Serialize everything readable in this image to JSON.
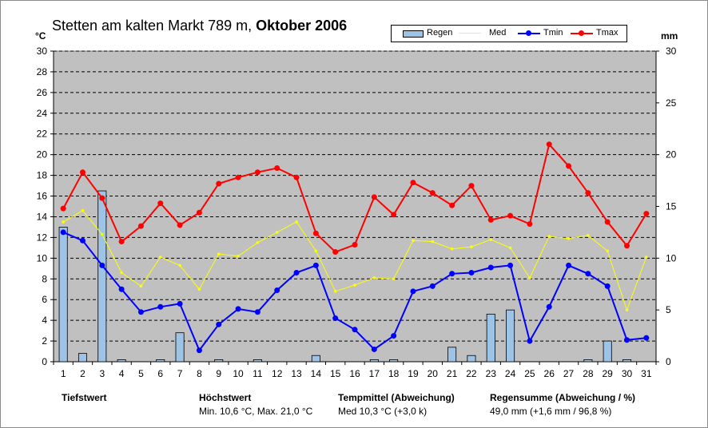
{
  "chart_data": {
    "type": "line",
    "title_prefix": "Stetten am kalten Markt 789 m,",
    "title_bold": "Oktober 2006",
    "left_unit": "°C",
    "right_unit": "mm",
    "x": [
      1,
      2,
      3,
      4,
      5,
      6,
      7,
      8,
      9,
      10,
      11,
      12,
      13,
      14,
      15,
      16,
      17,
      18,
      19,
      20,
      21,
      22,
      23,
      24,
      25,
      26,
      27,
      28,
      29,
      30,
      31
    ],
    "ylim_left": [
      0,
      30
    ],
    "yticks_left": [
      0,
      2,
      4,
      6,
      8,
      10,
      12,
      14,
      16,
      18,
      20,
      22,
      24,
      26,
      28,
      30
    ],
    "ylim_right": [
      0,
      30
    ],
    "yticks_right": [
      0,
      5,
      10,
      15,
      20,
      25,
      30
    ],
    "grid": true,
    "legend_position": "top-right",
    "series": [
      {
        "name": "Regen",
        "kind": "bar",
        "axis": "right",
        "color": "#9DC3E6",
        "values": [
          13.0,
          0.8,
          16.5,
          0.2,
          0,
          0.2,
          2.8,
          0,
          0.2,
          0,
          0.2,
          0,
          0,
          0.6,
          0,
          0,
          0.2,
          0.2,
          0,
          0,
          1.4,
          0.6,
          4.6,
          5.0,
          0,
          0,
          0,
          0.2,
          2.0,
          0.2,
          0
        ]
      },
      {
        "name": "Med",
        "kind": "line",
        "axis": "left",
        "color": "#FFFF00",
        "values": [
          13.5,
          14.6,
          12.3,
          8.6,
          7.3,
          10.1,
          9.3,
          7.0,
          10.4,
          10.2,
          11.5,
          12.5,
          13.5,
          10.7,
          6.8,
          7.4,
          8.1,
          8.0,
          11.7,
          11.6,
          10.9,
          11.1,
          11.8,
          11.0,
          8.1,
          12.1,
          11.9,
          12.2,
          10.7,
          5.0,
          10.1
        ]
      },
      {
        "name": "Tmin",
        "kind": "line",
        "axis": "left",
        "color": "#0000FF",
        "values": [
          12.5,
          11.7,
          9.3,
          7.0,
          4.8,
          5.3,
          5.6,
          1.1,
          3.6,
          5.1,
          4.8,
          6.9,
          8.6,
          9.3,
          4.2,
          3.1,
          1.2,
          2.5,
          6.8,
          7.3,
          8.5,
          8.6,
          9.1,
          9.3,
          2.0,
          5.3,
          9.3,
          8.5,
          7.3,
          2.1,
          2.3
        ]
      },
      {
        "name": "Tmax",
        "kind": "line",
        "axis": "left",
        "color": "#FF0000",
        "values": [
          14.8,
          18.3,
          15.8,
          11.6,
          13.1,
          15.3,
          13.2,
          14.4,
          17.2,
          17.8,
          18.3,
          18.7,
          17.8,
          12.4,
          10.6,
          11.3,
          15.9,
          14.2,
          17.3,
          16.3,
          15.1,
          17.0,
          13.7,
          14.1,
          13.3,
          21.0,
          18.9,
          16.3,
          13.5,
          11.2,
          14.3
        ]
      }
    ],
    "footer": {
      "tiefstwert_label": "Tiefstwert",
      "hoechstwert_label": "Höchstwert",
      "hoechstwert_value": "Min. 10,6 °C, Max. 21,0 °C",
      "tempmittel_label": "Tempmittel (Abweichung)",
      "tempmittel_value": "Med 10,3 °C (+3,0 k)",
      "regen_label": "Regensumme (Abweichung / %)",
      "regen_value": "49,0 mm (+1,6 mm / 96,8 %)"
    }
  }
}
